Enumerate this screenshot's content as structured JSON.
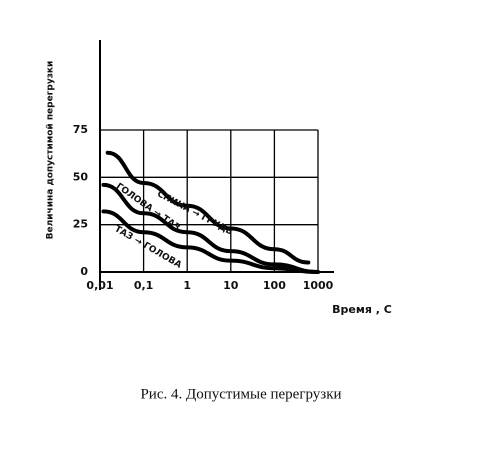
{
  "chart_data": {
    "type": "line",
    "caption": "Рис. 4. Допустимые перегрузки",
    "ylabel": "Величина допустимой перегрузки",
    "xlabel": "Время , С",
    "xscale": "log",
    "xlim": [
      0.01,
      1000
    ],
    "ylim": [
      0,
      75
    ],
    "xticks": [
      {
        "value": 0.01,
        "label": "0,01"
      },
      {
        "value": 0.1,
        "label": "0,1"
      },
      1,
      10,
      100,
      1000
    ],
    "yticks": [
      0,
      25,
      50,
      75
    ],
    "grid": true,
    "series": [
      {
        "name": "СПИНА → ГРУДЬ",
        "color": "#000000",
        "x": [
          0.015,
          0.1,
          1,
          10,
          100,
          600
        ],
        "values": [
          63,
          47,
          35,
          23,
          12,
          5
        ]
      },
      {
        "name": "ГОЛОВА → ТАЗ",
        "color": "#000000",
        "x": [
          0.012,
          0.1,
          1,
          10,
          100,
          1000
        ],
        "values": [
          46,
          31,
          21,
          11,
          4,
          0
        ]
      },
      {
        "name": "ТАЗ → ГОЛОВА",
        "color": "#000000",
        "x": [
          0.012,
          0.1,
          1,
          10,
          100,
          1000
        ],
        "values": [
          32,
          21,
          13,
          6,
          2,
          0
        ]
      }
    ]
  }
}
